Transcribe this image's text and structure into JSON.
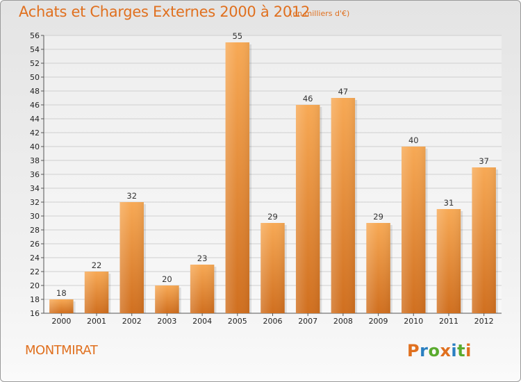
{
  "header": {
    "title": "Achats et Charges Externes 2000 à 2012",
    "unit": "(en milliers d'€)"
  },
  "footer": {
    "commune": "MONTMIRAT",
    "logo": "Proxiti"
  },
  "colors": {
    "accent": "#e0701f",
    "bar_top": "#f7a955",
    "bar_bottom": "#d06f1f"
  },
  "chart_data": {
    "type": "bar",
    "title": "Achats et Charges Externes 2000 à 2012",
    "subtitle": "(en milliers d'€)",
    "categories": [
      "2000",
      "2001",
      "2002",
      "2003",
      "2004",
      "2005",
      "2006",
      "2007",
      "2008",
      "2009",
      "2010",
      "2011",
      "2012"
    ],
    "values": [
      18,
      22,
      32,
      20,
      23,
      55,
      29,
      46,
      47,
      29,
      40,
      31,
      37
    ],
    "ylim": [
      16,
      56
    ],
    "yticks": [
      16,
      18,
      20,
      22,
      24,
      26,
      28,
      30,
      32,
      34,
      36,
      38,
      40,
      42,
      44,
      46,
      48,
      50,
      52,
      54,
      56
    ],
    "grid": true,
    "legend": "none"
  }
}
